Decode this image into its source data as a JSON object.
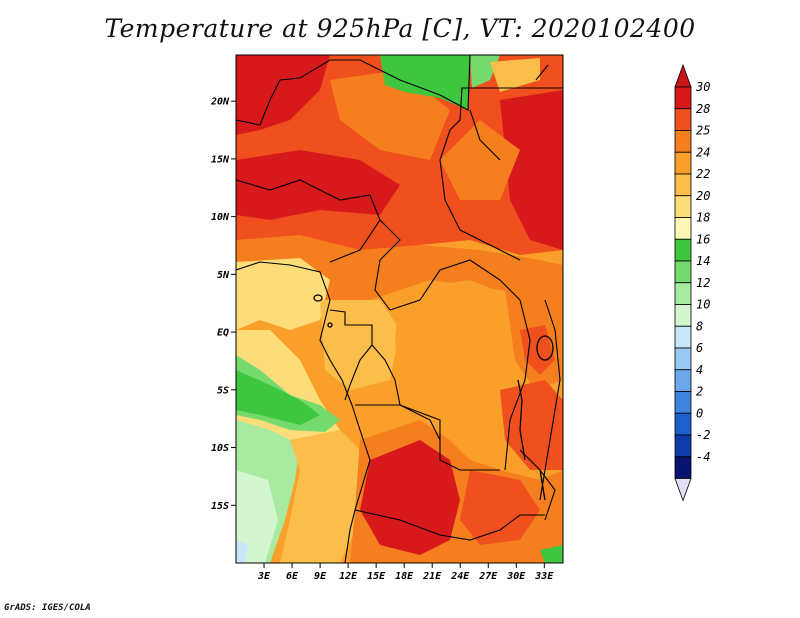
{
  "title": "Temperature at 925hPa [C], VT: 2020102400",
  "footer": "GrADS: IGES/COLA",
  "map": {
    "lon_range": [
      0,
      35
    ],
    "lat_range": [
      -20,
      24
    ],
    "y_ticks": [
      {
        "lat": 20,
        "label": "20N"
      },
      {
        "lat": 15,
        "label": "15N"
      },
      {
        "lat": 10,
        "label": "10N"
      },
      {
        "lat": 5,
        "label": "5N"
      },
      {
        "lat": 0,
        "label": "EQ"
      },
      {
        "lat": -5,
        "label": "5S"
      },
      {
        "lat": -10,
        "label": "10S"
      },
      {
        "lat": -15,
        "label": "15S"
      }
    ],
    "x_ticks": [
      {
        "lon": 3,
        "label": "3E"
      },
      {
        "lon": 6,
        "label": "6E"
      },
      {
        "lon": 9,
        "label": "9E"
      },
      {
        "lon": 12,
        "label": "12E"
      },
      {
        "lon": 15,
        "label": "15E"
      },
      {
        "lon": 18,
        "label": "18E"
      },
      {
        "lon": 21,
        "label": "21E"
      },
      {
        "lon": 24,
        "label": "24E"
      },
      {
        "lon": 27,
        "label": "27E"
      },
      {
        "lon": 30,
        "label": "30E"
      },
      {
        "lon": 33,
        "label": "33E"
      }
    ]
  },
  "colorbar": {
    "levels": [
      "30",
      "28",
      "25",
      "24",
      "22",
      "20",
      "18",
      "16",
      "14",
      "12",
      "10",
      "8",
      "6",
      "4",
      "2",
      "0",
      "-2",
      "-4"
    ],
    "colors": [
      "#d7191c",
      "#f0501e",
      "#f57f1f",
      "#faa02a",
      "#fbbe4b",
      "#fddc7a",
      "#fef6b4",
      "#3fc63f",
      "#75da6e",
      "#a7eaa0",
      "#d3f6d0",
      "#c7e6f8",
      "#99c9f2",
      "#6ca9ec",
      "#3f84e0",
      "#1d5fcd",
      "#0e3aaa",
      "#07136e"
    ],
    "top_color": "#c8141a",
    "bottom_color": "#e0e0f8"
  }
}
